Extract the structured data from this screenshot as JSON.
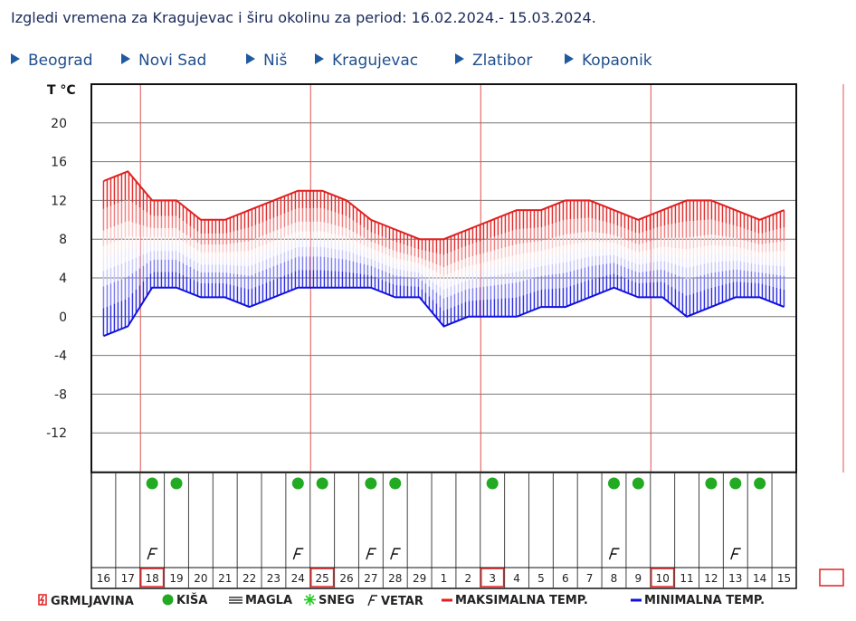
{
  "page_title": "Izgledi vremena za Kragujevac i širu okolinu za period: 16.02.2024.- 15.03.2024.",
  "nav": [
    {
      "label": "Beograd"
    },
    {
      "label": "Novi Sad"
    },
    {
      "label": "Niš"
    },
    {
      "label": "Kragujevac"
    },
    {
      "label": "Zlatibor"
    },
    {
      "label": "Kopaonik"
    }
  ],
  "legend": {
    "thunder": "GRMLJAVINA",
    "rain": "KIŠA",
    "fog": "MAGLA",
    "snow": "SNEG",
    "wind": "VETAR",
    "max": "MAKSIMALNA TEMP.",
    "min": "MINIMALNA TEMP."
  },
  "colors": {
    "max_line": "#e02020",
    "min_line": "#1010e0",
    "rain": "#22aa22",
    "highlight": "#e02020",
    "week_line": "#e05050",
    "nav_link": "#1f4f8f"
  },
  "chart_data": {
    "type": "line",
    "y_axis_label": "T °C",
    "ylim": [
      -16,
      24
    ],
    "y_ticks": [
      20,
      16,
      12,
      8,
      4,
      0,
      -4,
      -8,
      -12
    ],
    "day_labels": [
      "16",
      "17",
      "18",
      "19",
      "20",
      "21",
      "22",
      "23",
      "24",
      "25",
      "26",
      "27",
      "28",
      "29",
      "1",
      "2",
      "3",
      "4",
      "5",
      "6",
      "7",
      "8",
      "9",
      "10",
      "11",
      "12",
      "13",
      "14",
      "15"
    ],
    "highlighted_days": [
      "18",
      "25",
      "3",
      "10"
    ],
    "series": [
      {
        "name": "MAKSIMALNA TEMP.",
        "values": [
          14,
          15,
          12,
          12,
          10,
          10,
          11,
          12,
          13,
          13,
          12,
          10,
          9,
          8,
          8,
          9,
          10,
          11,
          11,
          12,
          12,
          11,
          10,
          11,
          12,
          12,
          11,
          10,
          11
        ]
      },
      {
        "name": "MINIMALNA TEMP.",
        "values": [
          -2,
          -1,
          3,
          3,
          2,
          2,
          1,
          2,
          3,
          3,
          3,
          3,
          2,
          2,
          -1,
          0,
          0,
          0,
          1,
          1,
          2,
          3,
          2,
          2,
          0,
          1,
          2,
          2,
          1
        ]
      }
    ],
    "rain_days": [
      "18",
      "19",
      "24",
      "25",
      "27",
      "28",
      "3",
      "8",
      "9",
      "12",
      "13",
      "14"
    ],
    "wind_days": [
      "18",
      "24",
      "27",
      "28",
      "8",
      "13"
    ],
    "grid": true
  }
}
